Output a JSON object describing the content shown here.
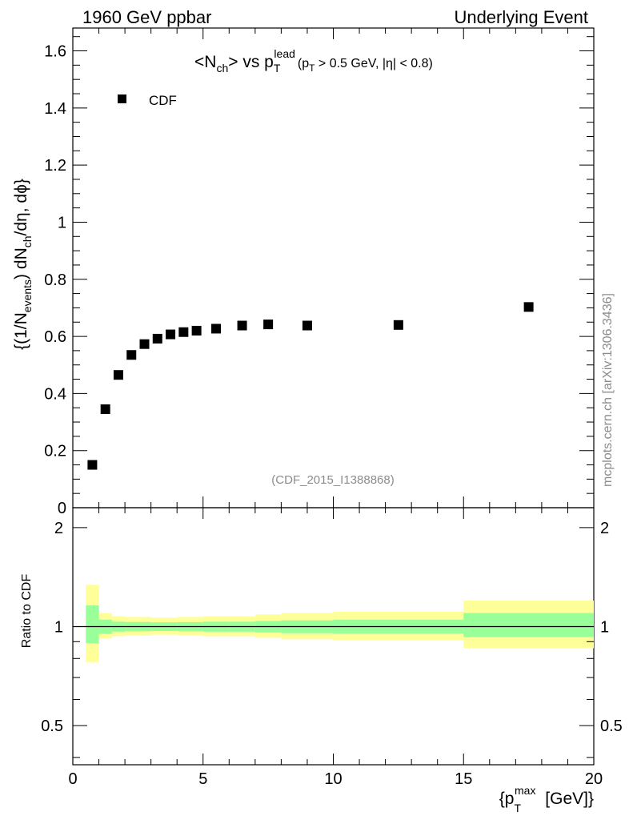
{
  "header": {
    "left": "1960 GeV ppbar",
    "right": "Underlying Event"
  },
  "chart_data": [
    {
      "type": "scatter",
      "title": "<N_ch> vs p_T^lead (p_T > 0.5 GeV, |η| < 0.8)",
      "ylabel": "{(1/N_events) dN_ch/dη, dφ}",
      "xlim": [
        0,
        20
      ],
      "ylim": [
        0,
        1.68
      ],
      "yticks": [
        0,
        0.2,
        0.4,
        0.6,
        0.8,
        1,
        1.2,
        1.4,
        1.6
      ],
      "ytick_labels": [
        "0",
        "0.2",
        "0.4",
        "0.6",
        "0.8",
        "1",
        "1.2",
        "1.4",
        "1.6"
      ],
      "legend": {
        "position": "top-left",
        "entries": [
          "CDF"
        ]
      },
      "annotation": "(CDF_2015_I1388868)",
      "series": [
        {
          "name": "CDF",
          "marker": "square",
          "color": "#000000",
          "x": [
            0.75,
            1.25,
            1.75,
            2.25,
            2.75,
            3.25,
            3.75,
            4.25,
            4.75,
            5.5,
            6.5,
            7.5,
            9.0,
            12.5,
            17.5
          ],
          "y": [
            0.15,
            0.345,
            0.465,
            0.535,
            0.573,
            0.592,
            0.607,
            0.615,
            0.62,
            0.627,
            0.638,
            0.642,
            0.638,
            0.64,
            0.703
          ]
        }
      ]
    },
    {
      "type": "area",
      "ylabel": "Ratio to CDF",
      "xlabel": "{p_T^max [GeV]}",
      "xlim": [
        0,
        20
      ],
      "ylim": [
        0.38,
        2.3
      ],
      "yscale": "log",
      "xticks": [
        0,
        5,
        10,
        15,
        20
      ],
      "xtick_labels": [
        "0",
        "5",
        "10",
        "15",
        "20"
      ],
      "yticks": [
        0.5,
        1,
        2
      ],
      "ytick_labels": [
        "0.5",
        "1",
        "2"
      ],
      "reference_line": 1,
      "band_colors": {
        "outer": "#ffff99",
        "inner": "#99ff99"
      },
      "bins": [
        {
          "x0": 0.5,
          "x1": 1.0,
          "outer": [
            0.78,
            1.34
          ],
          "inner": [
            0.89,
            1.16
          ]
        },
        {
          "x0": 1.0,
          "x1": 1.5,
          "outer": [
            0.92,
            1.1
          ],
          "inner": [
            0.95,
            1.05
          ]
        },
        {
          "x0": 1.5,
          "x1": 2.0,
          "outer": [
            0.935,
            1.075
          ],
          "inner": [
            0.965,
            1.035
          ]
        },
        {
          "x0": 2.0,
          "x1": 3.0,
          "outer": [
            0.94,
            1.07
          ],
          "inner": [
            0.968,
            1.033
          ]
        },
        {
          "x0": 3.0,
          "x1": 4.0,
          "outer": [
            0.945,
            1.065
          ],
          "inner": [
            0.97,
            1.03
          ]
        },
        {
          "x0": 4.0,
          "x1": 5.0,
          "outer": [
            0.94,
            1.07
          ],
          "inner": [
            0.968,
            1.032
          ]
        },
        {
          "x0": 5.0,
          "x1": 6.0,
          "outer": [
            0.935,
            1.075
          ],
          "inner": [
            0.965,
            1.035
          ]
        },
        {
          "x0": 6.0,
          "x1": 7.0,
          "outer": [
            0.935,
            1.075
          ],
          "inner": [
            0.965,
            1.035
          ]
        },
        {
          "x0": 7.0,
          "x1": 8.0,
          "outer": [
            0.925,
            1.09
          ],
          "inner": [
            0.96,
            1.04
          ]
        },
        {
          "x0": 8.0,
          "x1": 10.0,
          "outer": [
            0.915,
            1.1
          ],
          "inner": [
            0.955,
            1.045
          ]
        },
        {
          "x0": 10.0,
          "x1": 15.0,
          "outer": [
            0.91,
            1.11
          ],
          "inner": [
            0.953,
            1.05
          ]
        },
        {
          "x0": 15.0,
          "x1": 20.0,
          "outer": [
            0.86,
            1.2
          ],
          "inner": [
            0.93,
            1.1
          ]
        }
      ]
    }
  ],
  "side_label": "mcplots.cern.ch [arXiv:1306.3436]"
}
